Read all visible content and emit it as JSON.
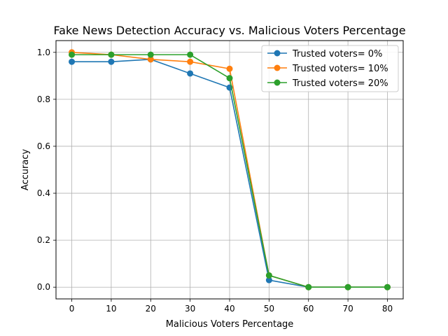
{
  "chart_data": {
    "type": "line",
    "title": "Fake News Detection Accuracy vs. Malicious Voters Percentage",
    "xlabel": "Malicious Voters Percentage",
    "ylabel": "Accuracy",
    "x": [
      0,
      10,
      20,
      30,
      40,
      50,
      60,
      70,
      80
    ],
    "xlim": [
      -4,
      84
    ],
    "ylim": [
      -0.05,
      1.05
    ],
    "xticks": [
      0,
      10,
      20,
      30,
      40,
      50,
      60,
      70,
      80
    ],
    "yticks": [
      0.0,
      0.2,
      0.4,
      0.6,
      0.8,
      1.0
    ],
    "xtick_labels": [
      "0",
      "10",
      "20",
      "30",
      "40",
      "50",
      "60",
      "70",
      "80"
    ],
    "ytick_labels": [
      "0.0",
      "0.2",
      "0.4",
      "0.6",
      "0.8",
      "1.0"
    ],
    "grid": true,
    "legend_position": "top-right",
    "series": [
      {
        "name": "Trusted voters= 0%",
        "color": "#1f77b4",
        "values": [
          0.96,
          0.96,
          0.97,
          0.91,
          0.85,
          0.03,
          0.0,
          0.0,
          0.0
        ]
      },
      {
        "name": "Trusted voters= 10%",
        "color": "#ff7f0e",
        "values": [
          1.0,
          0.99,
          0.97,
          0.96,
          0.93,
          0.05,
          0.0,
          0.0,
          0.0
        ]
      },
      {
        "name": "Trusted voters= 20%",
        "color": "#2ca02c",
        "values": [
          0.99,
          0.99,
          0.99,
          0.99,
          0.89,
          0.05,
          0.0,
          0.0,
          0.0
        ]
      }
    ]
  }
}
